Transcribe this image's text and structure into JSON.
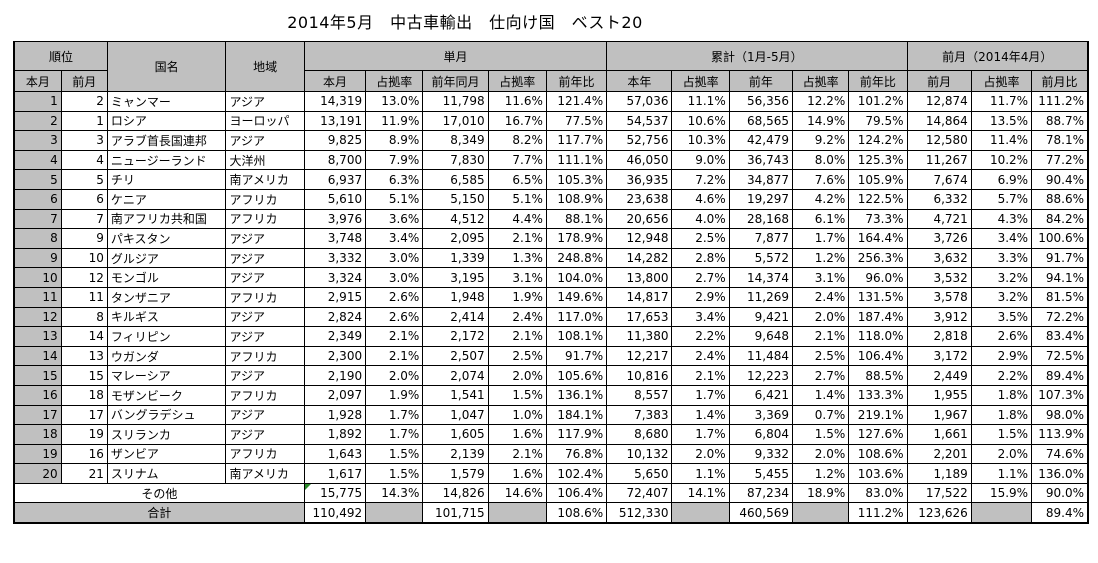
{
  "title": "2014年5月　中古車輸出　仕向け国　ベスト20",
  "header": {
    "rank": "順位",
    "country": "国名",
    "region": "地域",
    "monthly": "単月",
    "cumulative": "累計（1月-5月）",
    "prev_month": "前月（2014年4月）",
    "cur_rank": "本月",
    "prev_rank": "前月",
    "m_this": "本月",
    "m_share": "占拠率",
    "m_last_year": "前年同月",
    "m_share2": "占拠率",
    "m_yoy": "前年比",
    "c_this": "本年",
    "c_share": "占拠率",
    "c_last": "前年",
    "c_share2": "占拠率",
    "c_yoy": "前年比",
    "p_month": "前月",
    "p_share": "占拠率",
    "p_ratio": "前月比"
  },
  "rows": [
    [
      "1",
      "2",
      "ミャンマー",
      "アジア",
      "14,319",
      "13.0%",
      "11,798",
      "11.6%",
      "121.4%",
      "57,036",
      "11.1%",
      "56,356",
      "12.2%",
      "101.2%",
      "12,874",
      "11.7%",
      "111.2%"
    ],
    [
      "2",
      "1",
      "ロシア",
      "ヨーロッパ",
      "13,191",
      "11.9%",
      "17,010",
      "16.7%",
      "77.5%",
      "54,537",
      "10.6%",
      "68,565",
      "14.9%",
      "79.5%",
      "14,864",
      "13.5%",
      "88.7%"
    ],
    [
      "3",
      "3",
      "アラブ首長国連邦",
      "アジア",
      "9,825",
      "8.9%",
      "8,349",
      "8.2%",
      "117.7%",
      "52,756",
      "10.3%",
      "42,479",
      "9.2%",
      "124.2%",
      "12,580",
      "11.4%",
      "78.1%"
    ],
    [
      "4",
      "4",
      "ニュージーランド",
      "大洋州",
      "8,700",
      "7.9%",
      "7,830",
      "7.7%",
      "111.1%",
      "46,050",
      "9.0%",
      "36,743",
      "8.0%",
      "125.3%",
      "11,267",
      "10.2%",
      "77.2%"
    ],
    [
      "5",
      "5",
      "チリ",
      "南アメリカ",
      "6,937",
      "6.3%",
      "6,585",
      "6.5%",
      "105.3%",
      "36,935",
      "7.2%",
      "34,877",
      "7.6%",
      "105.9%",
      "7,674",
      "6.9%",
      "90.4%"
    ],
    [
      "6",
      "6",
      "ケニア",
      "アフリカ",
      "5,610",
      "5.1%",
      "5,150",
      "5.1%",
      "108.9%",
      "23,638",
      "4.6%",
      "19,297",
      "4.2%",
      "122.5%",
      "6,332",
      "5.7%",
      "88.6%"
    ],
    [
      "7",
      "7",
      "南アフリカ共和国",
      "アフリカ",
      "3,976",
      "3.6%",
      "4,512",
      "4.4%",
      "88.1%",
      "20,656",
      "4.0%",
      "28,168",
      "6.1%",
      "73.3%",
      "4,721",
      "4.3%",
      "84.2%"
    ],
    [
      "8",
      "9",
      "パキスタン",
      "アジア",
      "3,748",
      "3.4%",
      "2,095",
      "2.1%",
      "178.9%",
      "12,948",
      "2.5%",
      "7,877",
      "1.7%",
      "164.4%",
      "3,726",
      "3.4%",
      "100.6%"
    ],
    [
      "9",
      "10",
      "グルジア",
      "アジア",
      "3,332",
      "3.0%",
      "1,339",
      "1.3%",
      "248.8%",
      "14,282",
      "2.8%",
      "5,572",
      "1.2%",
      "256.3%",
      "3,632",
      "3.3%",
      "91.7%"
    ],
    [
      "10",
      "12",
      "モンゴル",
      "アジア",
      "3,324",
      "3.0%",
      "3,195",
      "3.1%",
      "104.0%",
      "13,800",
      "2.7%",
      "14,374",
      "3.1%",
      "96.0%",
      "3,532",
      "3.2%",
      "94.1%"
    ],
    [
      "11",
      "11",
      "タンザニア",
      "アフリカ",
      "2,915",
      "2.6%",
      "1,948",
      "1.9%",
      "149.6%",
      "14,817",
      "2.9%",
      "11,269",
      "2.4%",
      "131.5%",
      "3,578",
      "3.2%",
      "81.5%"
    ],
    [
      "12",
      "8",
      "キルギス",
      "アジア",
      "2,824",
      "2.6%",
      "2,414",
      "2.4%",
      "117.0%",
      "17,653",
      "3.4%",
      "9,421",
      "2.0%",
      "187.4%",
      "3,912",
      "3.5%",
      "72.2%"
    ],
    [
      "13",
      "14",
      "フィリピン",
      "アジア",
      "2,349",
      "2.1%",
      "2,172",
      "2.1%",
      "108.1%",
      "11,380",
      "2.2%",
      "9,648",
      "2.1%",
      "118.0%",
      "2,818",
      "2.6%",
      "83.4%"
    ],
    [
      "14",
      "13",
      "ウガンダ",
      "アフリカ",
      "2,300",
      "2.1%",
      "2,507",
      "2.5%",
      "91.7%",
      "12,217",
      "2.4%",
      "11,484",
      "2.5%",
      "106.4%",
      "3,172",
      "2.9%",
      "72.5%"
    ],
    [
      "15",
      "15",
      "マレーシア",
      "アジア",
      "2,190",
      "2.0%",
      "2,074",
      "2.0%",
      "105.6%",
      "10,816",
      "2.1%",
      "12,223",
      "2.7%",
      "88.5%",
      "2,449",
      "2.2%",
      "89.4%"
    ],
    [
      "16",
      "18",
      "モザンビーク",
      "アフリカ",
      "2,097",
      "1.9%",
      "1,541",
      "1.5%",
      "136.1%",
      "8,557",
      "1.7%",
      "6,421",
      "1.4%",
      "133.3%",
      "1,955",
      "1.8%",
      "107.3%"
    ],
    [
      "17",
      "17",
      "バングラデシュ",
      "アジア",
      "1,928",
      "1.7%",
      "1,047",
      "1.0%",
      "184.1%",
      "7,383",
      "1.4%",
      "3,369",
      "0.7%",
      "219.1%",
      "1,967",
      "1.8%",
      "98.0%"
    ],
    [
      "18",
      "19",
      "スリランカ",
      "アジア",
      "1,892",
      "1.7%",
      "1,605",
      "1.6%",
      "117.9%",
      "8,680",
      "1.7%",
      "6,804",
      "1.5%",
      "127.6%",
      "1,661",
      "1.5%",
      "113.9%"
    ],
    [
      "19",
      "16",
      "ザンビア",
      "アフリカ",
      "1,643",
      "1.5%",
      "2,139",
      "2.1%",
      "76.8%",
      "10,132",
      "2.0%",
      "9,332",
      "2.0%",
      "108.6%",
      "2,201",
      "2.0%",
      "74.6%"
    ],
    [
      "20",
      "21",
      "スリナム",
      "南アメリカ",
      "1,617",
      "1.5%",
      "1,579",
      "1.6%",
      "102.4%",
      "5,650",
      "1.1%",
      "5,455",
      "1.2%",
      "103.6%",
      "1,189",
      "1.1%",
      "136.0%"
    ]
  ],
  "other": {
    "label": "その他",
    "values": [
      "15,775",
      "14.3%",
      "14,826",
      "14.6%",
      "106.4%",
      "72,407",
      "14.1%",
      "87,234",
      "18.9%",
      "83.0%",
      "17,522",
      "15.9%",
      "90.0%"
    ]
  },
  "total": {
    "label": "合計",
    "values": [
      "110,492",
      "",
      "101,715",
      "",
      "108.6%",
      "512,330",
      "",
      "460,569",
      "",
      "111.2%",
      "123,626",
      "",
      "89.4%"
    ]
  },
  "colors": {
    "header_bg": "#c0c0c0",
    "rank_bg": "#c0c0c0",
    "marker": "#2a8a2a"
  }
}
